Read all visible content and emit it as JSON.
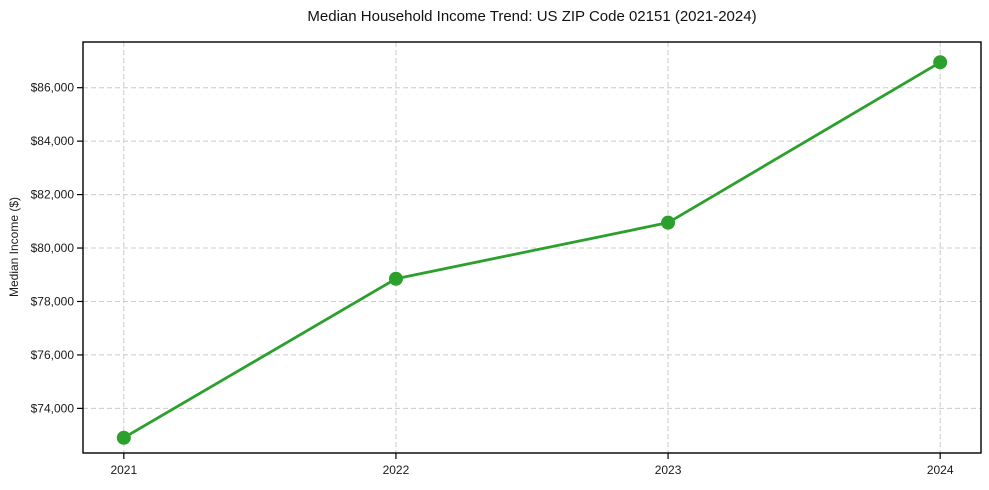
{
  "chart_data": {
    "type": "line",
    "title": "Median Household Income Trend: US ZIP Code 02151 (2021-2024)",
    "xlabel": "",
    "ylabel": "Median Income ($)",
    "x": [
      2021,
      2022,
      2023,
      2024
    ],
    "series": [
      {
        "name": "Median household income",
        "values": [
          72900,
          78850,
          80950,
          86950
        ]
      }
    ],
    "xticks": [
      2021,
      2022,
      2023,
      2024
    ],
    "xtick_labels": [
      "2021",
      "2022",
      "2023",
      "2024"
    ],
    "yticks": [
      74000,
      76000,
      78000,
      80000,
      82000,
      84000,
      86000
    ],
    "ytick_labels": [
      "$74,000",
      "$76,000",
      "$78,000",
      "$80,000",
      "$82,000",
      "$84,000",
      "$86,000"
    ],
    "xlim": [
      2020.85,
      2024.15
    ],
    "ylim": [
      72330,
      87710
    ],
    "grid": true,
    "grid_style": "dashed",
    "legend": null,
    "colors": {
      "line": "#2ca02c",
      "marker": "#2ca02c",
      "grid": "#cccccc",
      "spine": "#000000",
      "tick_text": "#1a1a1a",
      "background": "#ffffff"
    }
  }
}
